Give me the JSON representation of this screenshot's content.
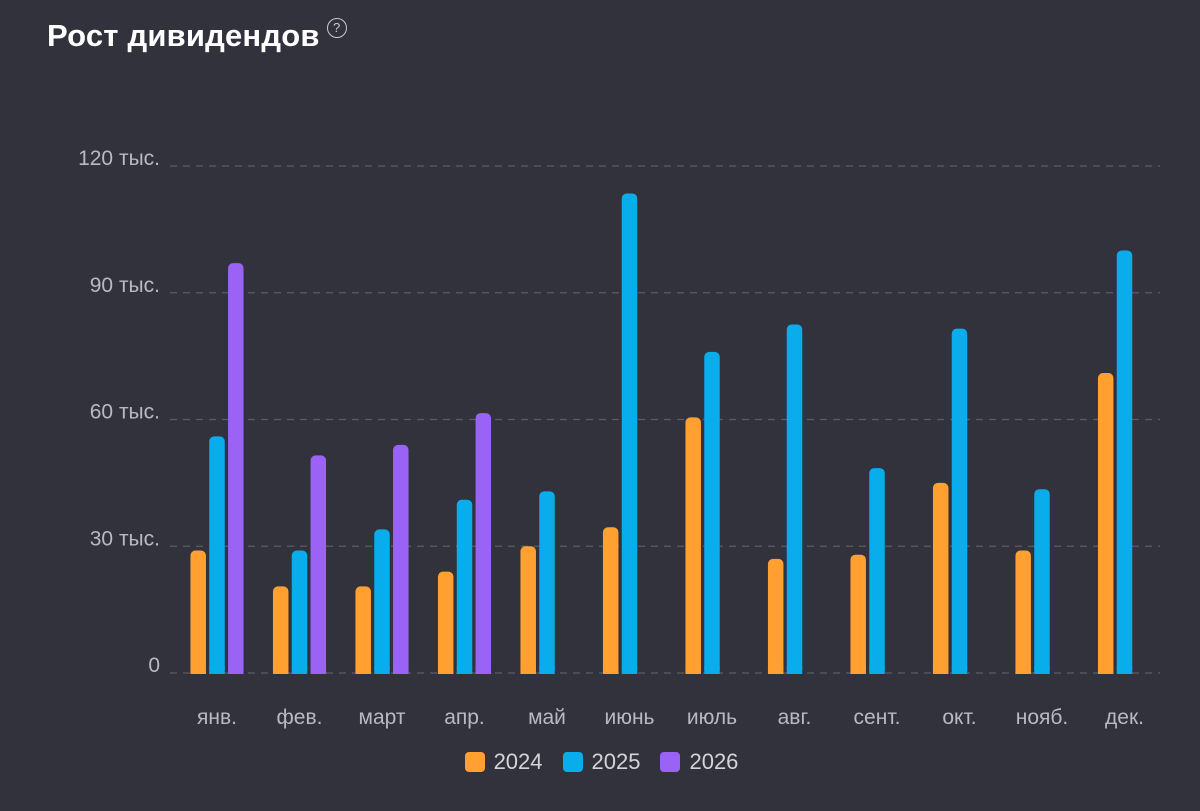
{
  "header": {
    "title": "Рост дивидендов",
    "help_icon": "help-circle-icon",
    "help_glyph": "?"
  },
  "colors": {
    "background": "#32323d",
    "grid": "#5c5c68",
    "axis_text": "#b9b9c3"
  },
  "chart_data": {
    "type": "bar",
    "title": "Рост дивидендов",
    "xlabel": "",
    "ylabel": "",
    "ylim": [
      0,
      120000
    ],
    "yticks": [
      0,
      30000,
      60000,
      90000,
      120000
    ],
    "ytick_labels": [
      "0",
      "30 тыс.",
      "60 тыс.",
      "90 тыс.",
      "120 тыс."
    ],
    "grid": true,
    "legend_position": "bottom-center",
    "categories": [
      "янв.",
      "фев.",
      "март",
      "апр.",
      "май",
      "июнь",
      "июль",
      "авг.",
      "сент.",
      "окт.",
      "нояб.",
      "дек."
    ],
    "series": [
      {
        "name": "2024",
        "color": "#ffa030",
        "values": [
          29000,
          20500,
          20500,
          24000,
          30000,
          34500,
          60500,
          27000,
          28000,
          45000,
          29000,
          71000
        ]
      },
      {
        "name": "2025",
        "color": "#0aadec",
        "values": [
          56000,
          29000,
          34000,
          41000,
          43000,
          113500,
          76000,
          82500,
          48500,
          81500,
          43500,
          100000
        ]
      },
      {
        "name": "2026",
        "color": "#9a63f5",
        "values": [
          97000,
          51500,
          54000,
          61500,
          null,
          null,
          null,
          null,
          null,
          null,
          null,
          null
        ]
      }
    ]
  }
}
